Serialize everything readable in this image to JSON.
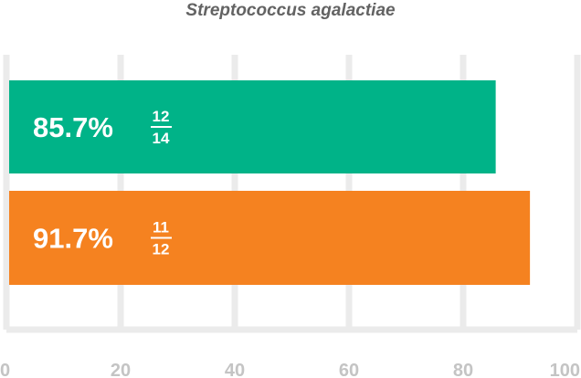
{
  "chart_data": {
    "type": "bar",
    "orientation": "horizontal",
    "title": "Streptococcus agalactiae",
    "xlim": [
      0,
      100
    ],
    "x_ticks": [
      0,
      20,
      40,
      60,
      80,
      100
    ],
    "grid": true,
    "bars": [
      {
        "value": 85.7,
        "label": "85.7%",
        "numerator": "12",
        "denominator": "14",
        "color": "#00b388"
      },
      {
        "value": 91.7,
        "label": "91.7%",
        "numerator": "11",
        "denominator": "12",
        "color": "#f58220"
      }
    ]
  },
  "colors": {
    "grid": "#ebebeb",
    "tick_text": "#c4c4c4",
    "title_text": "#636363"
  }
}
